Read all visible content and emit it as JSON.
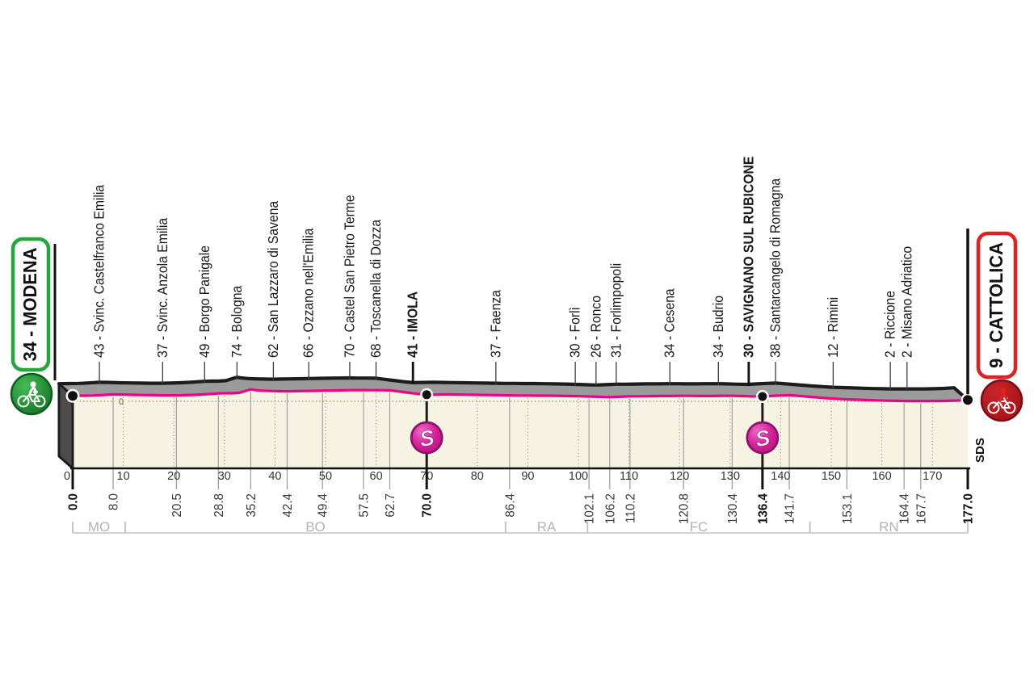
{
  "stage": {
    "start_label": "34 - MODENA",
    "finish_label": "9 - CATTOLICA",
    "start_elevation_m": 34,
    "finish_elevation_m": 9,
    "total_km": "177.0",
    "credit": "SDS",
    "zero_line_label": "0"
  },
  "colors": {
    "pink": "#ef0084",
    "gray_band": "#9b9b9b",
    "outline_black": "#1c1c1c",
    "cream": "#f7f3e2",
    "side_face": "#4f4b4c",
    "start_green": "#23a73c",
    "start_green_dark": "#107022",
    "finish_red": "#e1201f",
    "finish_red_dark": "#a31015",
    "sprint_fill": "#d6219c",
    "sprint_ring": "#8e1166",
    "province_gray": "#b3b3b3",
    "grid_gray": "#888888"
  },
  "chart_data": {
    "type": "line",
    "title": "Giro stage profile Modena - Cattolica",
    "x_unit": "km",
    "y_unit": "m",
    "x_range": [
      0,
      177
    ],
    "x_ticks": [
      0,
      10,
      20,
      30,
      40,
      50,
      60,
      70,
      80,
      90,
      100,
      110,
      120,
      130,
      140,
      150,
      160,
      170
    ],
    "zero_line_elevation": 0,
    "sprint_symbol": "S",
    "waypoints": [
      {
        "km": 0.0,
        "km_label": "0.0",
        "elev": 34,
        "name": null,
        "bold": true,
        "sprint": false,
        "start": true
      },
      {
        "km": 8.0,
        "km_label": "8.0",
        "elev": 43,
        "name": "43 - Svinc. Castelfranco Emilia",
        "bold": false,
        "sprint": false
      },
      {
        "km": 20.5,
        "km_label": "20.5",
        "elev": 37,
        "name": "37 - Svinc. Anzola Emilia",
        "bold": false,
        "sprint": false
      },
      {
        "km": 28.8,
        "km_label": "28.8",
        "elev": 49,
        "name": "49 - Borgo Panigale",
        "bold": false,
        "sprint": false
      },
      {
        "km": 35.2,
        "km_label": "35.2",
        "elev": 74,
        "name": "74 - Bologna",
        "bold": false,
        "sprint": false
      },
      {
        "km": 42.4,
        "km_label": "42.4",
        "elev": 62,
        "name": "62 - San Lazzaro di Savena",
        "bold": false,
        "sprint": false
      },
      {
        "km": 49.4,
        "km_label": "49.4",
        "elev": 66,
        "name": "66 - Ozzano nell'Emilia",
        "bold": false,
        "sprint": false
      },
      {
        "km": 57.5,
        "km_label": "57.5",
        "elev": 70,
        "name": "70 - Castel San Pietro Terme",
        "bold": false,
        "sprint": false
      },
      {
        "km": 62.7,
        "km_label": "62.7",
        "elev": 68,
        "name": "68 - Toscanella di Dozza",
        "bold": false,
        "sprint": false
      },
      {
        "km": 70.0,
        "km_label": "70.0",
        "elev": 41,
        "name": "41 - IMOLA",
        "bold": true,
        "sprint": true
      },
      {
        "km": 86.4,
        "km_label": "86.4",
        "elev": 37,
        "name": "37 - Faenza",
        "bold": false,
        "sprint": false
      },
      {
        "km": 102.1,
        "km_label": "102.1",
        "elev": 30,
        "name": "30 - Forlì",
        "bold": false,
        "sprint": false
      },
      {
        "km": 106.2,
        "km_label": "106.2",
        "elev": 26,
        "name": "26 - Ronco",
        "bold": false,
        "sprint": false
      },
      {
        "km": 110.2,
        "km_label": "110.2",
        "elev": 31,
        "name": "31 - Forlimpopoli",
        "bold": false,
        "sprint": false
      },
      {
        "km": 120.8,
        "km_label": "120.8",
        "elev": 34,
        "name": "34 - Cesena",
        "bold": false,
        "sprint": false
      },
      {
        "km": 130.4,
        "km_label": "130.4",
        "elev": 34,
        "name": "34 - Budrio",
        "bold": false,
        "sprint": false
      },
      {
        "km": 136.4,
        "km_label": "136.4",
        "elev": 30,
        "name": "30 - SAVIGNANO SUL RUBICONE",
        "bold": true,
        "sprint": true
      },
      {
        "km": 141.7,
        "km_label": "141.7",
        "elev": 38,
        "name": "38 - Santarcangelo di Romagna",
        "bold": false,
        "sprint": false
      },
      {
        "km": 153.1,
        "km_label": "153.1",
        "elev": 12,
        "name": "12 - Rimini",
        "bold": false,
        "sprint": false
      },
      {
        "km": 164.4,
        "km_label": "164.4",
        "elev": 2,
        "name": "2 - Riccione",
        "bold": false,
        "sprint": false
      },
      {
        "km": 167.7,
        "km_label": "167.7",
        "elev": 2,
        "name": "2 - Misano Adriatico",
        "bold": false,
        "sprint": false
      },
      {
        "km": 177.0,
        "km_label": "177.0",
        "elev": 9,
        "name": null,
        "bold": true,
        "sprint": false,
        "finish": true
      }
    ],
    "profile": [
      [
        0,
        34
      ],
      [
        2,
        35
      ],
      [
        4,
        36
      ],
      [
        6,
        39
      ],
      [
        8,
        43
      ],
      [
        10,
        42
      ],
      [
        12,
        40
      ],
      [
        14,
        39
      ],
      [
        16,
        38
      ],
      [
        18,
        37
      ],
      [
        20.5,
        37
      ],
      [
        22,
        38
      ],
      [
        24,
        40
      ],
      [
        26,
        43
      ],
      [
        28.8,
        49
      ],
      [
        30,
        50
      ],
      [
        31.5,
        50
      ],
      [
        33,
        53
      ],
      [
        34.2,
        65
      ],
      [
        35.2,
        74
      ],
      [
        36,
        70
      ],
      [
        37.5,
        66
      ],
      [
        39,
        64
      ],
      [
        40.5,
        63
      ],
      [
        42.4,
        62
      ],
      [
        44,
        63
      ],
      [
        46,
        64
      ],
      [
        48,
        65
      ],
      [
        49.4,
        66
      ],
      [
        51,
        67
      ],
      [
        53,
        68
      ],
      [
        55,
        69
      ],
      [
        57.5,
        70
      ],
      [
        59,
        69
      ],
      [
        61,
        69
      ],
      [
        62.7,
        68
      ],
      [
        64,
        63
      ],
      [
        66,
        55
      ],
      [
        68,
        47
      ],
      [
        70,
        41
      ],
      [
        72,
        42
      ],
      [
        74,
        43
      ],
      [
        76,
        42
      ],
      [
        78,
        41
      ],
      [
        80,
        40
      ],
      [
        82,
        39
      ],
      [
        84,
        38
      ],
      [
        86.4,
        37
      ],
      [
        88,
        36
      ],
      [
        90,
        36
      ],
      [
        92,
        35
      ],
      [
        94,
        35
      ],
      [
        96,
        34
      ],
      [
        98,
        33
      ],
      [
        100,
        32
      ],
      [
        102.1,
        30
      ],
      [
        104,
        28
      ],
      [
        106.2,
        26
      ],
      [
        108,
        28
      ],
      [
        110.2,
        31
      ],
      [
        112,
        31
      ],
      [
        114,
        32
      ],
      [
        116,
        33
      ],
      [
        118,
        33
      ],
      [
        120.8,
        34
      ],
      [
        122,
        34
      ],
      [
        124,
        33
      ],
      [
        126,
        33
      ],
      [
        128,
        34
      ],
      [
        130.4,
        34
      ],
      [
        132,
        33
      ],
      [
        134,
        31
      ],
      [
        136.4,
        30
      ],
      [
        138,
        33
      ],
      [
        140,
        36
      ],
      [
        141.7,
        38
      ],
      [
        143,
        35
      ],
      [
        145,
        30
      ],
      [
        147,
        25
      ],
      [
        149,
        20
      ],
      [
        151,
        16
      ],
      [
        153.1,
        12
      ],
      [
        155,
        10
      ],
      [
        157,
        8
      ],
      [
        159,
        6
      ],
      [
        161,
        4
      ],
      [
        163,
        3
      ],
      [
        164.4,
        2
      ],
      [
        166,
        2
      ],
      [
        167.7,
        2
      ],
      [
        169,
        2
      ],
      [
        171,
        2
      ],
      [
        173,
        3
      ],
      [
        175,
        5
      ],
      [
        177,
        9
      ]
    ],
    "provinces": [
      {
        "code": "MO",
        "from": 0,
        "to": 10.4
      },
      {
        "code": "BO",
        "from": 10.4,
        "to": 85.6
      },
      {
        "code": "RA",
        "from": 85.6,
        "to": 101.8
      },
      {
        "code": "FC",
        "from": 101.8,
        "to": 145.8
      },
      {
        "code": "RN",
        "from": 145.8,
        "to": 177
      }
    ]
  }
}
